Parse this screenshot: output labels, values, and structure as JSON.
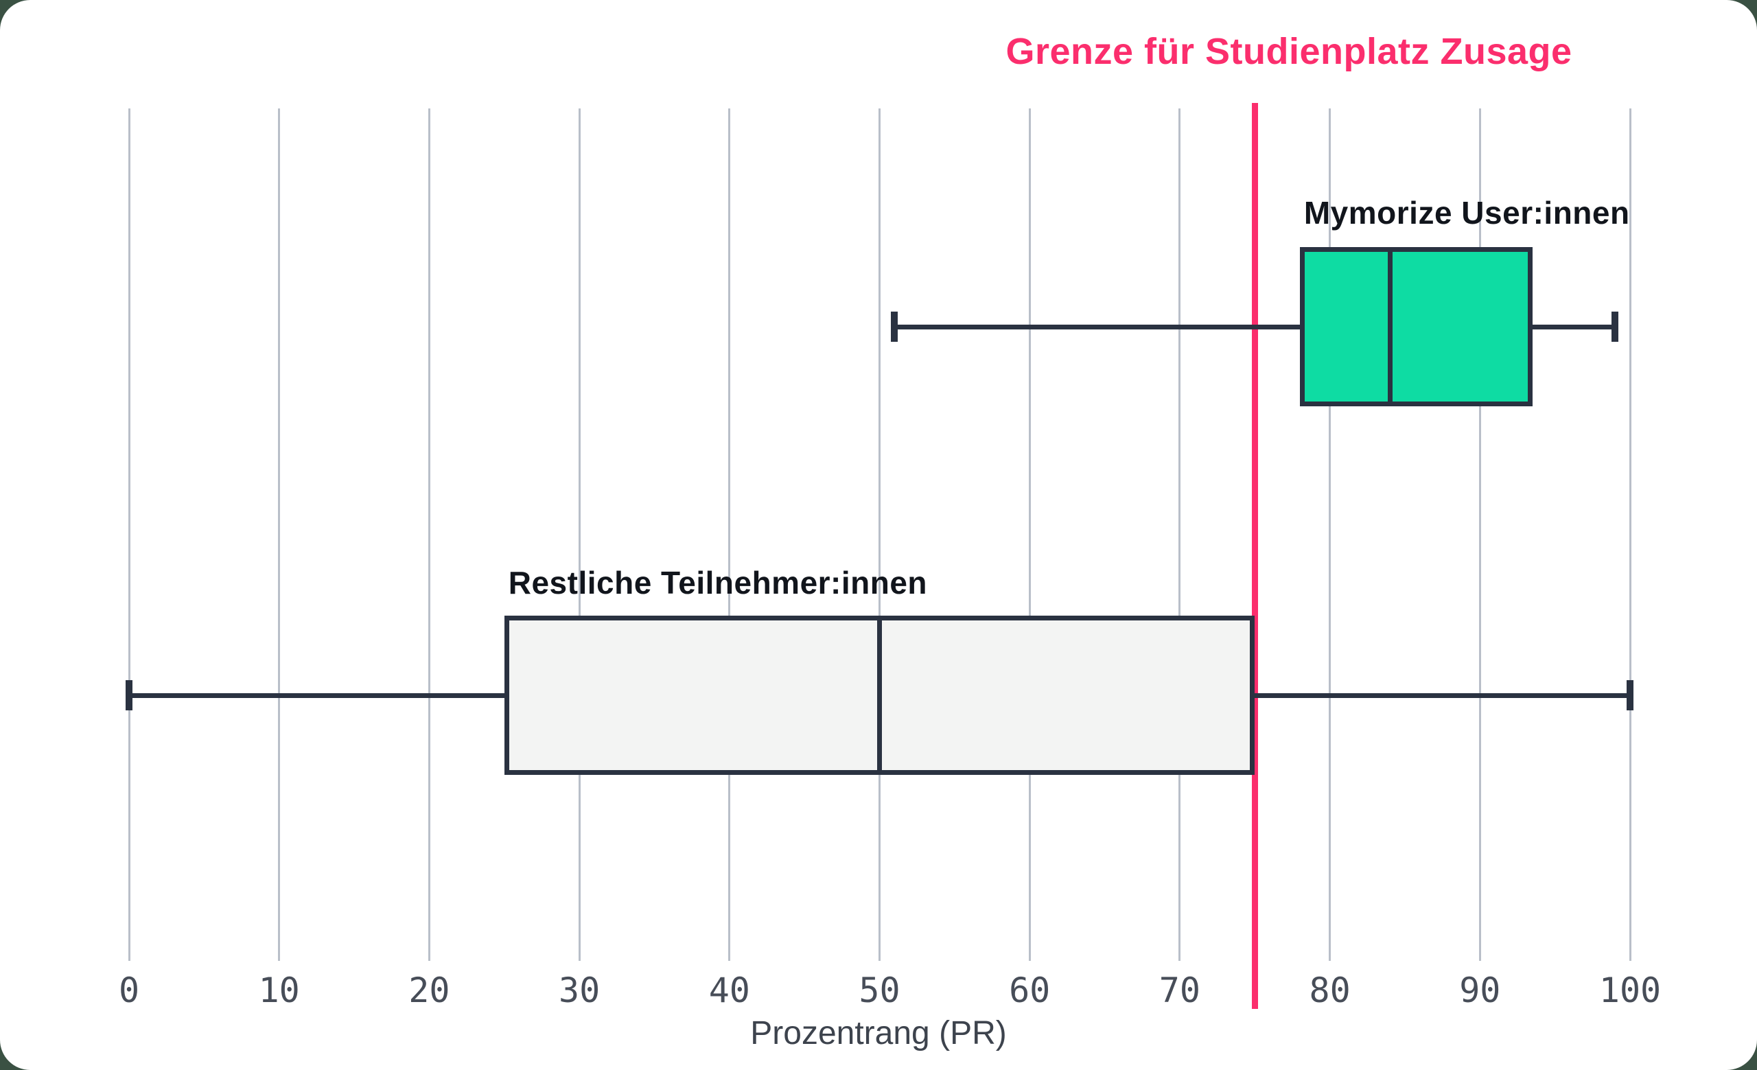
{
  "title": "Grenze für Studienplatz Zusage",
  "chart_data": {
    "type": "boxplot",
    "orientation": "horizontal",
    "title": "Grenze für Studienplatz Zusage",
    "xlabel": "Prozentrang (PR)",
    "xlim": [
      0,
      100
    ],
    "x_ticks": [
      0,
      10,
      20,
      30,
      40,
      50,
      60,
      70,
      80,
      90,
      100
    ],
    "grid": "vertical",
    "legend_position": "labels-above-boxes",
    "threshold_line": {
      "label": "Grenze für Studienplatz Zusage",
      "x": 75
    },
    "series": [
      {
        "name": "Mymorize User:innen",
        "min": 51,
        "q1": 78,
        "median": 84,
        "q3": 93.5,
        "max": 99
      },
      {
        "name": "Restliche Teilnehmer:innen",
        "min": 0,
        "q1": 25,
        "median": 50,
        "q3": 75,
        "max": 100
      }
    ]
  },
  "colors": {
    "background_green": "#3a5143",
    "card_white": "#ffffff",
    "accent_pink": "#fb2e6d",
    "box_green_fill": "#0edca3",
    "box_gray_fill": "#f3f4f3",
    "stroke_dark": "#2a3241",
    "gridline_gray": "#b9bfc9",
    "series_label_text": "#11151c",
    "tick_text": "#474d58",
    "axis_label_text": "#3d434d"
  }
}
